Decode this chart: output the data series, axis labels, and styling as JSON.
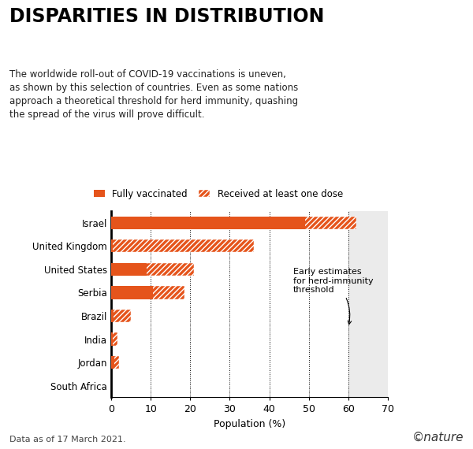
{
  "title": "DISPARITIES IN DISTRIBUTION",
  "subtitle": "The worldwide roll-out of COVID-19 vaccinations is uneven,\nas shown by this selection of countries. Even as some nations\napproach a theoretical threshold for herd immunity, quashing\nthe spread of the virus will prove difficult.",
  "countries": [
    "Israel",
    "United Kingdom",
    "United States",
    "Serbia",
    "Brazil",
    "India",
    "Jordan",
    "South Africa"
  ],
  "fully_vaccinated": [
    49.0,
    0.3,
    9.0,
    10.5,
    0.5,
    0.3,
    0.8,
    0.05
  ],
  "at_least_one_dose": [
    62.0,
    36.0,
    21.0,
    18.5,
    5.0,
    1.5,
    2.0,
    0.1
  ],
  "bar_color": "#E5541B",
  "herd_immunity_min": 60,
  "herd_immunity_max": 70,
  "herd_immunity_color": "#EBEBEB",
  "xlim": [
    0,
    70
  ],
  "xticks": [
    0,
    10,
    20,
    30,
    40,
    50,
    60,
    70
  ],
  "xlabel": "Population (%)",
  "footnote": "Data as of 17 March 2021.",
  "legend_solid": "Fully vaccinated",
  "legend_hatch": "Received at least one dose",
  "annotation": "Early estimates\nfor herd-immunity\nthreshold",
  "background_color": "#FFFFFF"
}
